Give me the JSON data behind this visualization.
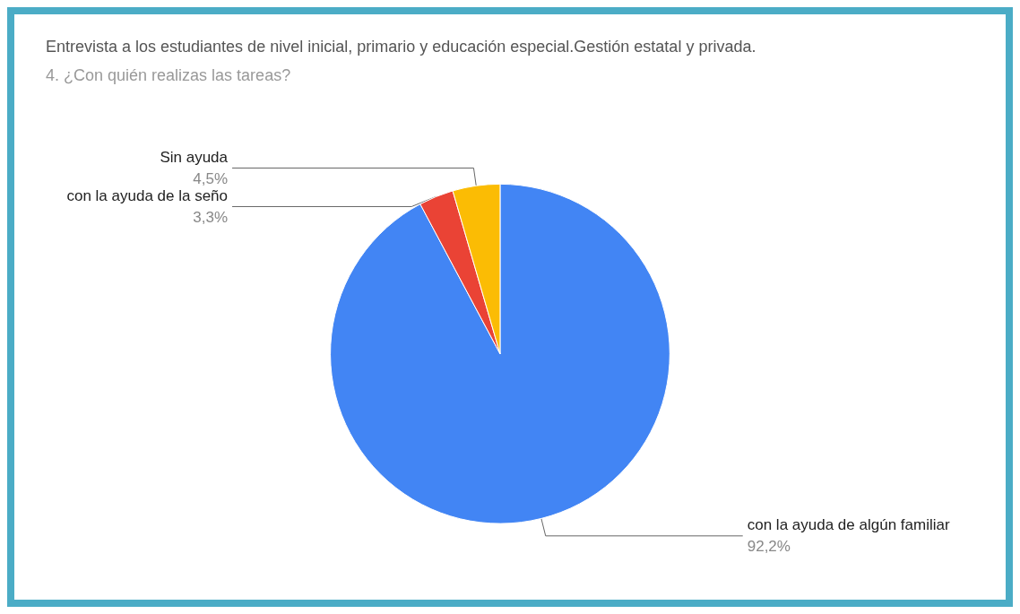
{
  "chart_data": {
    "type": "pie",
    "title": "Entrevista a los estudiantes de nivel inicial, primario y educación especial.Gestión estatal y privada.",
    "subtitle": "4. ¿Con quién realizas las tareas?",
    "categories": [
      "con la ayuda de algún familiar",
      "con la ayuda de la seño",
      "Sin ayuda"
    ],
    "values": [
      92.2,
      3.3,
      4.5
    ],
    "colors": [
      "#4285f4",
      "#ea4335",
      "#fbbc04"
    ],
    "value_labels": [
      "92,2%",
      "3,3%",
      "4,5%"
    ],
    "legend": false
  }
}
